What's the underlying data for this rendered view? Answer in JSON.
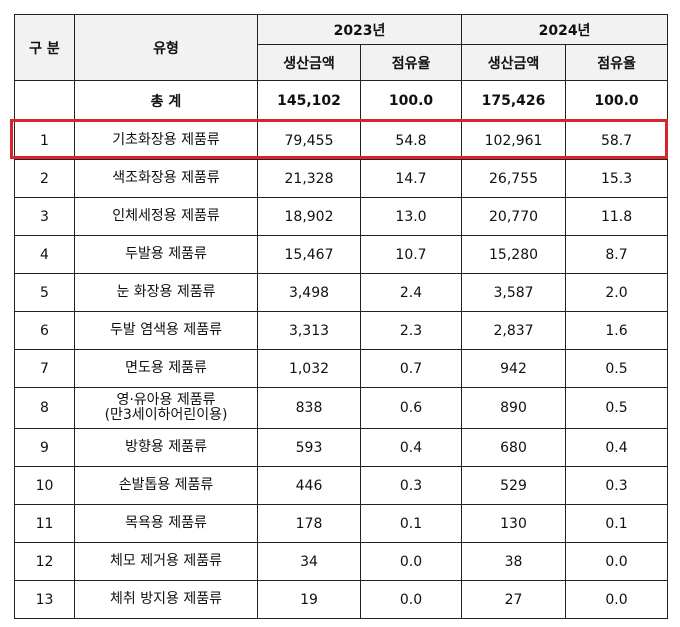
{
  "header": {
    "gubun": "구 분",
    "type": "유형",
    "year1": "2023년",
    "year2": "2024년",
    "amount": "생산금액",
    "share": "점유율"
  },
  "total": {
    "label": "총 계",
    "a1": "145,102",
    "s1": "100.0",
    "a2": "175,426",
    "s2": "100.0"
  },
  "rows": [
    {
      "no": "1",
      "name": "기초화장용 제품류",
      "a1": "79,455",
      "s1": "54.8",
      "a2": "102,961",
      "s2": "58.7"
    },
    {
      "no": "2",
      "name": "색조화장용 제품류",
      "a1": "21,328",
      "s1": "14.7",
      "a2": "26,755",
      "s2": "15.3"
    },
    {
      "no": "3",
      "name": "인체세정용 제품류",
      "a1": "18,902",
      "s1": "13.0",
      "a2": "20,770",
      "s2": "11.8"
    },
    {
      "no": "4",
      "name": "두발용 제품류",
      "a1": "15,467",
      "s1": "10.7",
      "a2": "15,280",
      "s2": "8.7"
    },
    {
      "no": "5",
      "name": "눈 화장용 제품류",
      "a1": "3,498",
      "s1": "2.4",
      "a2": "3,587",
      "s2": "2.0"
    },
    {
      "no": "6",
      "name": "두발 염색용 제품류",
      "a1": "3,313",
      "s1": "2.3",
      "a2": "2,837",
      "s2": "1.6"
    },
    {
      "no": "7",
      "name": "면도용 제품류",
      "a1": "1,032",
      "s1": "0.7",
      "a2": "942",
      "s2": "0.5"
    },
    {
      "no": "8",
      "name": "영·유아용 제품류\n(만3세이하어린이용)",
      "a1": "838",
      "s1": "0.6",
      "a2": "890",
      "s2": "0.5"
    },
    {
      "no": "9",
      "name": "방향용 제품류",
      "a1": "593",
      "s1": "0.4",
      "a2": "680",
      "s2": "0.4"
    },
    {
      "no": "10",
      "name": "손발톱용 제품류",
      "a1": "446",
      "s1": "0.3",
      "a2": "529",
      "s2": "0.3"
    },
    {
      "no": "11",
      "name": "목욕용 제품류",
      "a1": "178",
      "s1": "0.1",
      "a2": "130",
      "s2": "0.1"
    },
    {
      "no": "12",
      "name": "체모 제거용 제품류",
      "a1": "34",
      "s1": "0.0",
      "a2": "38",
      "s2": "0.0"
    },
    {
      "no": "13",
      "name": "체취 방지용 제품류",
      "a1": "19",
      "s1": "0.0",
      "a2": "27",
      "s2": "0.0"
    }
  ],
  "colors": {
    "highlight": "#d9232d",
    "header_bg": "#f2f2f2"
  }
}
